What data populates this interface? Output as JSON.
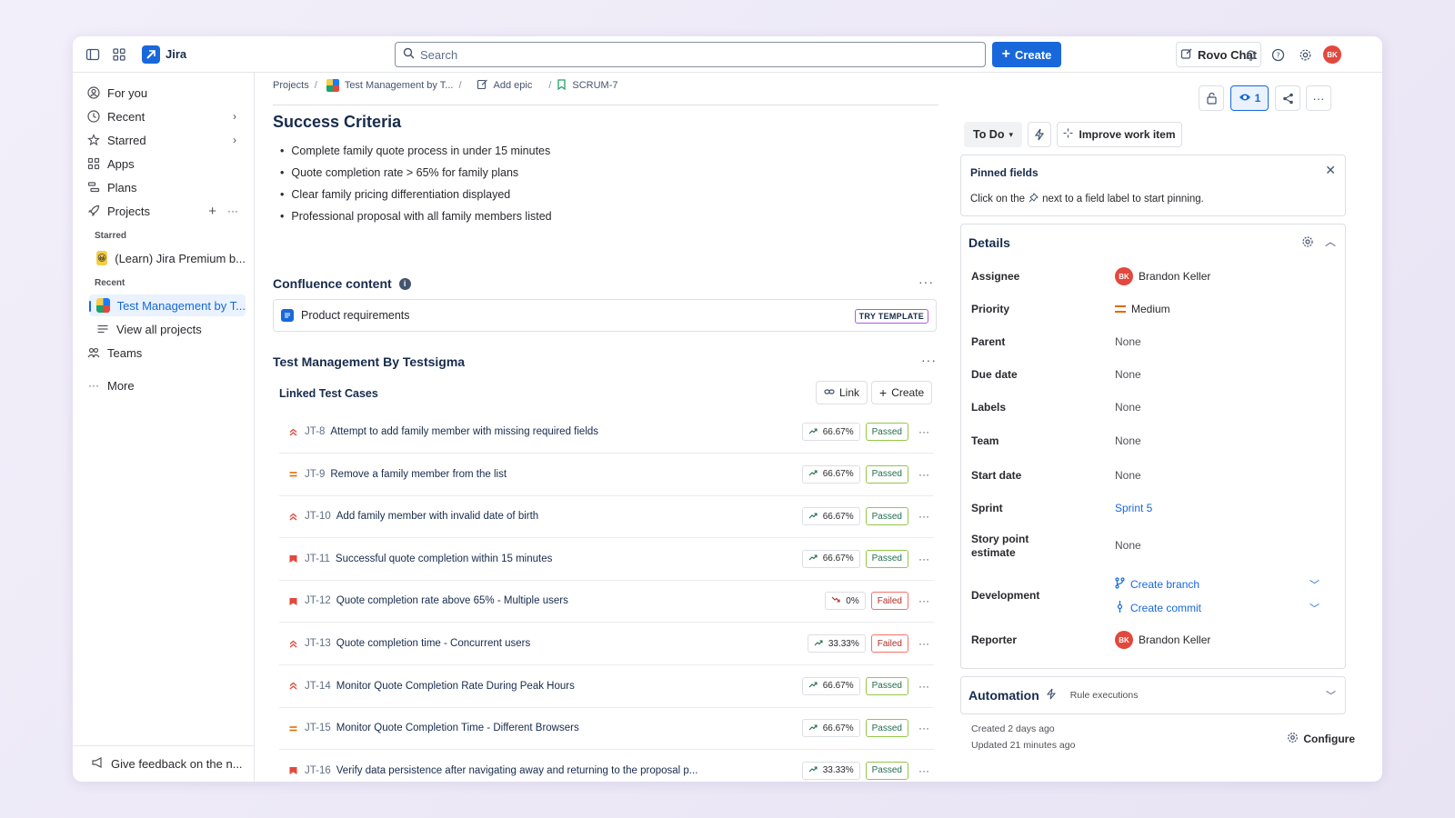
{
  "topbar": {
    "app_name": "Jira",
    "search_placeholder": "Search",
    "create_label": "Create",
    "rovo_label": "Rovo Chat",
    "avatar_initials": "BK"
  },
  "sidebar": {
    "items": [
      {
        "label": "For you",
        "icon": "user-circle-icon"
      },
      {
        "label": "Recent",
        "icon": "clock-icon"
      },
      {
        "label": "Starred",
        "icon": "star-icon"
      },
      {
        "label": "Apps",
        "icon": "apps-icon"
      },
      {
        "label": "Plans",
        "icon": "plans-icon"
      },
      {
        "label": "Projects",
        "icon": "rocket-icon"
      }
    ],
    "starred_section": "Starred",
    "starred_project": "(Learn) Jira Premium b...",
    "recent_section": "Recent",
    "recent_project": "Test Management by T...",
    "view_all": "View all projects",
    "teams": "Teams",
    "more": "More",
    "feedback": "Give feedback on the n..."
  },
  "breadcrumb": {
    "projects": "Projects",
    "project": "Test Management by T...",
    "epic": "Add epic",
    "issue": "SCRUM-7"
  },
  "success": {
    "title": "Success Criteria",
    "bullets": [
      "Complete family quote process in under 15 minutes",
      "Quote completion rate > 65% for family plans",
      "Clear family pricing differentiation displayed",
      "Professional proposal with all family members listed"
    ]
  },
  "confluence": {
    "title": "Confluence content",
    "item": "Product requirements",
    "badge": "TRY TEMPLATE"
  },
  "testsigma": {
    "title": "Test Management By Testsigma",
    "linked_title": "Linked Test Cases",
    "link_label": "Link",
    "create_label": "Create",
    "rows": [
      {
        "key": "JT-8",
        "title": "Attempt to add family member with missing required fields",
        "pct": "66.67%",
        "trend": "up",
        "status": "Passed",
        "priority": "high"
      },
      {
        "key": "JT-9",
        "title": "Remove a family member from the list",
        "pct": "66.67%",
        "trend": "up",
        "status": "Passed",
        "priority": "medium"
      },
      {
        "key": "JT-10",
        "title": "Add family member with invalid date of birth",
        "pct": "66.67%",
        "trend": "up",
        "status": "Passed",
        "priority": "high"
      },
      {
        "key": "JT-11",
        "title": "Successful quote completion within 15 minutes",
        "pct": "66.67%",
        "trend": "up",
        "status": "Passed",
        "priority": "highest"
      },
      {
        "key": "JT-12",
        "title": "Quote completion rate above 65% - Multiple users",
        "pct": "0%",
        "trend": "down",
        "status": "Failed",
        "priority": "highest"
      },
      {
        "key": "JT-13",
        "title": "Quote completion time - Concurrent users",
        "pct": "33.33%",
        "trend": "up",
        "status": "Failed",
        "priority": "high"
      },
      {
        "key": "JT-14",
        "title": "Monitor Quote Completion Rate During Peak Hours",
        "pct": "66.67%",
        "trend": "up",
        "status": "Passed",
        "priority": "high"
      },
      {
        "key": "JT-15",
        "title": "Monitor Quote Completion Time - Different Browsers",
        "pct": "66.67%",
        "trend": "up",
        "status": "Passed",
        "priority": "medium"
      },
      {
        "key": "JT-16",
        "title": "Verify data persistence after navigating away and returning to the proposal p...",
        "pct": "33.33%",
        "trend": "up",
        "status": "Passed",
        "priority": "highest"
      }
    ]
  },
  "right": {
    "watch_count": "1",
    "status": "To Do",
    "improve": "Improve work item",
    "pinned_title": "Pinned fields",
    "pinned_desc_pre": "Click on the",
    "pinned_desc_post": "next to a field label to start pinning.",
    "details_title": "Details",
    "fields": {
      "assignee_label": "Assignee",
      "assignee": "Brandon Keller",
      "priority_label": "Priority",
      "priority": "Medium",
      "parent_label": "Parent",
      "parent": "None",
      "due_label": "Due date",
      "due": "None",
      "labels_label": "Labels",
      "labels": "None",
      "team_label": "Team",
      "team": "None",
      "start_label": "Start date",
      "start": "None",
      "sprint_label": "Sprint",
      "sprint": "Sprint 5",
      "spe_label": "Story point estimate",
      "spe": "None",
      "dev_label": "Development",
      "create_branch": "Create branch",
      "create_commit": "Create commit",
      "reporter_label": "Reporter",
      "reporter": "Brandon Keller",
      "avatar_initials": "BK"
    },
    "automation_title": "Automation",
    "automation_sub": "Rule executions",
    "created": "Created 2 days ago",
    "updated": "Updated 21 minutes ago",
    "configure": "Configure"
  },
  "colors": {
    "brand": "#1868db",
    "avatar": "#e2483d",
    "priority_high": "#e2483d",
    "priority_medium": "#e06c00",
    "passed": "#216e4e",
    "failed": "#ae2e24"
  }
}
